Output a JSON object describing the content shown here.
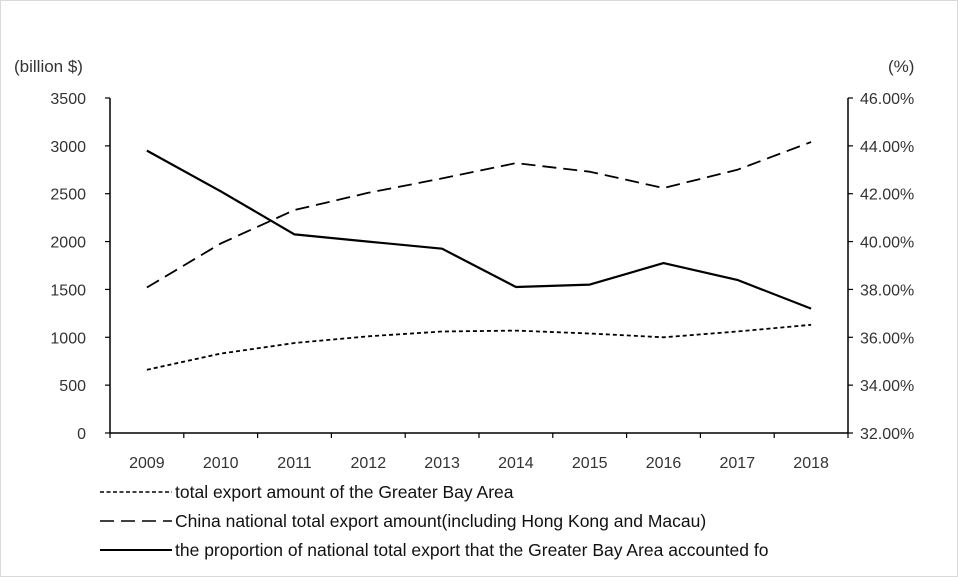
{
  "chart_data": {
    "type": "line",
    "categories": [
      "2009",
      "2010",
      "2011",
      "2012",
      "2013",
      "2014",
      "2015",
      "2016",
      "2017",
      "2018"
    ],
    "y_left": {
      "label": "(billion $)",
      "ticks": [
        "0",
        "500",
        "1000",
        "1500",
        "2000",
        "2500",
        "3000",
        "3500"
      ],
      "range": [
        0,
        3500
      ]
    },
    "y_right": {
      "label": "(%)",
      "ticks": [
        "32.00%",
        "34.00%",
        "36.00%",
        "38.00%",
        "40.00%",
        "42.00%",
        "44.00%",
        "46.00%"
      ],
      "range": [
        32,
        46
      ]
    },
    "series": [
      {
        "name": "total export amount of the Greater Bay Area",
        "axis": "left",
        "dash": "dotted",
        "values": [
          660,
          830,
          940,
          1010,
          1060,
          1070,
          1040,
          1000,
          1060,
          1130
        ]
      },
      {
        "name": "China national total export amount(including Hong Kong and Macau)",
        "axis": "left",
        "dash": "dashed",
        "values": [
          1520,
          1980,
          2330,
          2510,
          2660,
          2820,
          2730,
          2560,
          2750,
          3040
        ]
      },
      {
        "name": "the proportion of national total export that the Greater Bay Area accounted fo",
        "axis": "right",
        "dash": "solid",
        "values": [
          43.8,
          42.1,
          40.3,
          40.0,
          39.7,
          38.1,
          38.2,
          39.1,
          38.4,
          37.2
        ]
      }
    ],
    "grid": false,
    "legend_position": "bottom"
  }
}
